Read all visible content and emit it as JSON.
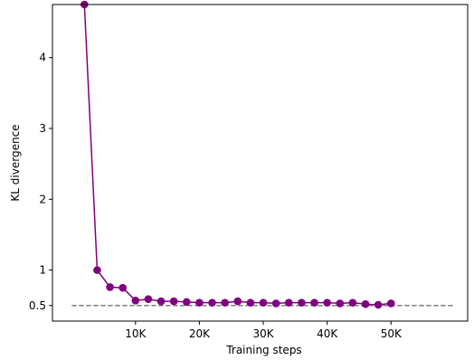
{
  "chart_data": {
    "type": "line",
    "title": "",
    "xlabel": "Training steps",
    "ylabel": "KL divergence",
    "xlim": [
      -3000,
      62000
    ],
    "ylim": [
      0.28,
      4.75
    ],
    "x_ticks": [
      10000,
      20000,
      30000,
      40000,
      50000
    ],
    "x_tick_labels": [
      "10K",
      "20K",
      "30K",
      "40K",
      "50K"
    ],
    "y_ticks": [
      0.5,
      1,
      2,
      3,
      4
    ],
    "y_tick_labels": [
      "0.5",
      "1",
      "2",
      "3",
      "4"
    ],
    "grid": false,
    "legend": "none",
    "series": [
      {
        "color": "#800080",
        "marker": "circle",
        "x": [
          2000,
          4000,
          6000,
          8000,
          10000,
          12000,
          14000,
          16000,
          18000,
          20000,
          22000,
          24000,
          26000,
          28000,
          30000,
          32000,
          34000,
          36000,
          38000,
          40000,
          42000,
          44000,
          46000,
          48000,
          50000
        ],
        "y": [
          4.75,
          1.0,
          0.76,
          0.75,
          0.57,
          0.59,
          0.56,
          0.56,
          0.55,
          0.54,
          0.54,
          0.54,
          0.56,
          0.54,
          0.54,
          0.53,
          0.54,
          0.54,
          0.54,
          0.54,
          0.53,
          0.54,
          0.52,
          0.51,
          0.53
        ]
      }
    ],
    "reference_line": {
      "y": 0.5,
      "x_range": [
        0,
        60000
      ],
      "color": "#808080",
      "style": "dashed"
    }
  }
}
